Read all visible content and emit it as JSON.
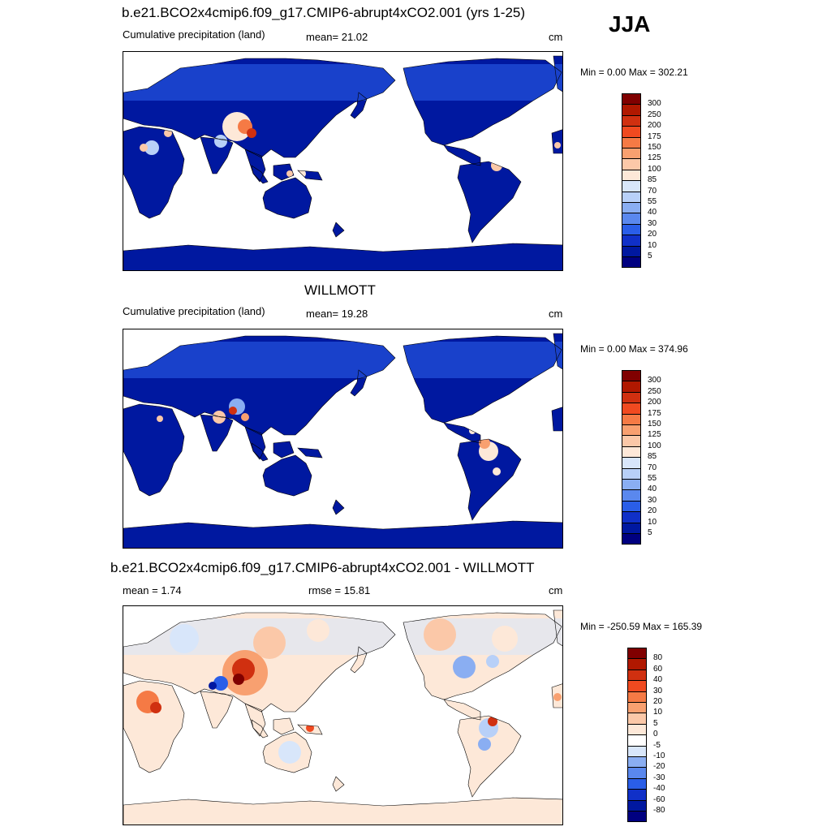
{
  "season": "JJA",
  "panels": [
    {
      "title": "b.e21.BCO2x4cmip6.f09_g17.CMIP6-abrupt4xCO2.001 (yrs 1-25)",
      "left": "Cumulative precipitation (land)",
      "center": "mean=  21.02",
      "units": "cm",
      "minmax": "Min =   0.00 Max = 302.21",
      "levels": [
        "300",
        "250",
        "200",
        "175",
        "150",
        "125",
        "100",
        "85",
        "70",
        "55",
        "40",
        "30",
        "20",
        "10",
        "5"
      ],
      "colors": [
        "#800000",
        "#b01800",
        "#d03010",
        "#f04a20",
        "#f57a45",
        "#f8a070",
        "#fbc8a8",
        "#fde8d8",
        "#d8e6fa",
        "#b8d0f8",
        "#8aaef2",
        "#5a88ee",
        "#2a5ee8",
        "#1030c8",
        "#0018a0",
        "#000080"
      ]
    },
    {
      "title": "WILLMOTT",
      "left": "Cumulative precipitation (land)",
      "center": "mean=  19.28",
      "units": "cm",
      "minmax": "Min =   0.00 Max = 374.96",
      "levels": [
        "300",
        "250",
        "200",
        "175",
        "150",
        "125",
        "100",
        "85",
        "70",
        "55",
        "40",
        "30",
        "20",
        "10",
        "5"
      ],
      "colors": [
        "#800000",
        "#b01800",
        "#d03010",
        "#f04a20",
        "#f57a45",
        "#f8a070",
        "#fbc8a8",
        "#fde8d8",
        "#d8e6fa",
        "#b8d0f8",
        "#8aaef2",
        "#5a88ee",
        "#2a5ee8",
        "#1030c8",
        "#0018a0",
        "#000080"
      ]
    },
    {
      "title": "b.e21.BCO2x4cmip6.f09_g17.CMIP6-abrupt4xCO2.001 - WILLMOTT",
      "left": "mean =   1.74",
      "center": "rmse =  15.81",
      "units": "cm",
      "minmax": "Min = -250.59 Max = 165.39",
      "levels": [
        "80",
        "60",
        "40",
        "30",
        "20",
        "10",
        "5",
        "0",
        "-5",
        "-10",
        "-20",
        "-30",
        "-40",
        "-60",
        "-80"
      ],
      "colors": [
        "#800000",
        "#b01800",
        "#d03010",
        "#f04a20",
        "#f57a45",
        "#f8a070",
        "#fbc8a8",
        "#fde8d8",
        "#ffffff",
        "#d8e6fa",
        "#8aaef2",
        "#5a88ee",
        "#2a5ee8",
        "#1030c8",
        "#0018a0",
        "#000080"
      ]
    }
  ]
}
